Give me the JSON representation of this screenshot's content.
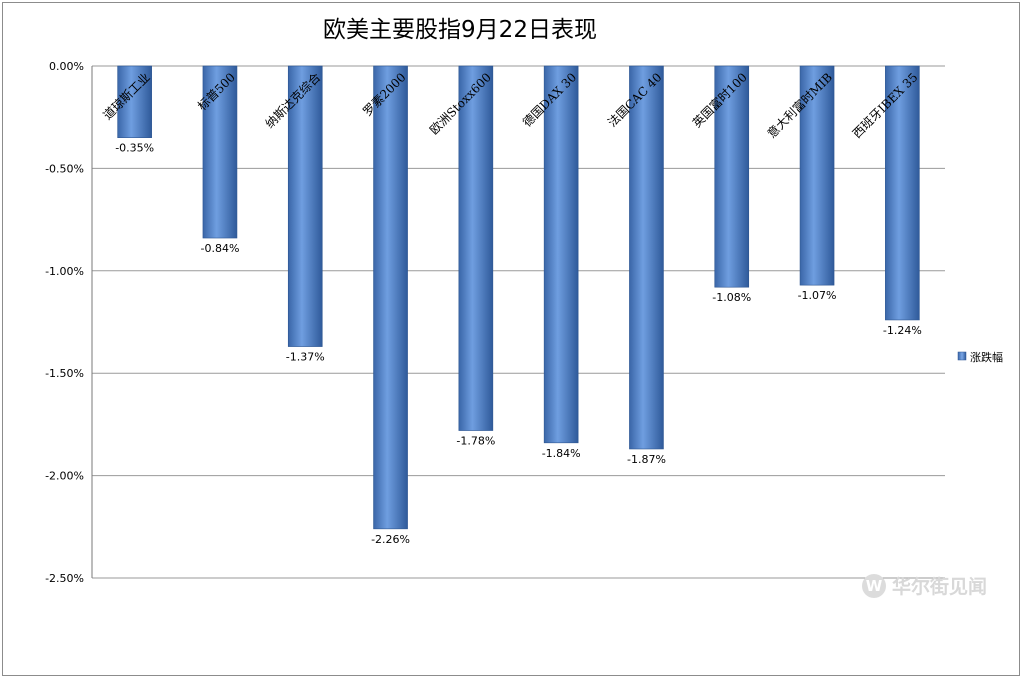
{
  "chart_data": {
    "type": "bar",
    "title": "欧美主要股指9月22日表现",
    "categories": [
      "道琼斯工业",
      "标普500",
      "纳斯达克综合",
      "罗素2000",
      "欧洲Stoxx600",
      "德国DAX 30",
      "法国CAC 40",
      "英国富时100",
      "意大利富时MIB",
      "西班牙IBEX 35"
    ],
    "series": [
      {
        "name": "涨跌幅",
        "values": [
          -0.35,
          -0.84,
          -1.37,
          -2.26,
          -1.78,
          -1.84,
          -1.87,
          -1.08,
          -1.07,
          -1.24
        ]
      }
    ],
    "value_labels": [
      "-0.35%",
      "-0.84%",
      "-1.37%",
      "-2.26%",
      "-1.78%",
      "-1.84%",
      "-1.87%",
      "-1.08%",
      "-1.07%",
      "-1.24%"
    ],
    "ylim": [
      -2.5,
      0
    ],
    "y_ticks": [
      "0.00%",
      "-0.50%",
      "-1.00%",
      "-1.50%",
      "-2.00%",
      "-2.50%"
    ],
    "grid": true,
    "legend_position": "right",
    "bar_color": "#4a7ec4"
  },
  "watermark": {
    "logo": "W",
    "text": "华尔街见闻"
  }
}
